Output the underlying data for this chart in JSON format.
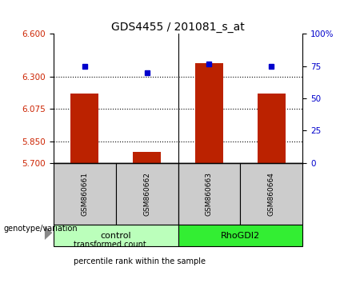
{
  "title": "GDS4455 / 201081_s_at",
  "samples": [
    "GSM860661",
    "GSM860662",
    "GSM860663",
    "GSM860664"
  ],
  "bar_values": [
    6.185,
    5.775,
    6.395,
    6.185
  ],
  "percentile_values": [
    75,
    70,
    77,
    75
  ],
  "bar_color": "#BB2200",
  "point_color": "#0000CC",
  "ylim_left": [
    5.7,
    6.6
  ],
  "ylim_right": [
    0,
    100
  ],
  "yticks_left": [
    5.7,
    5.85,
    6.075,
    6.3,
    6.6
  ],
  "yticks_right": [
    0,
    25,
    50,
    75,
    100
  ],
  "ytick_labels_right": [
    "0",
    "25",
    "50",
    "75",
    "100%"
  ],
  "hlines": [
    5.85,
    6.075,
    6.3
  ],
  "groups": [
    {
      "label": "control",
      "samples": [
        0,
        1
      ],
      "color": "#BBFFBB"
    },
    {
      "label": "RhoGDI2",
      "samples": [
        2,
        3
      ],
      "color": "#33EE33"
    }
  ],
  "legend_items": [
    {
      "label": "transformed count",
      "color": "#BB2200"
    },
    {
      "label": "percentile rank within the sample",
      "color": "#0000CC"
    }
  ],
  "bar_width": 0.45,
  "bar_bottom": 5.7,
  "left_tick_color": "#CC2200",
  "right_tick_color": "#0000CC"
}
